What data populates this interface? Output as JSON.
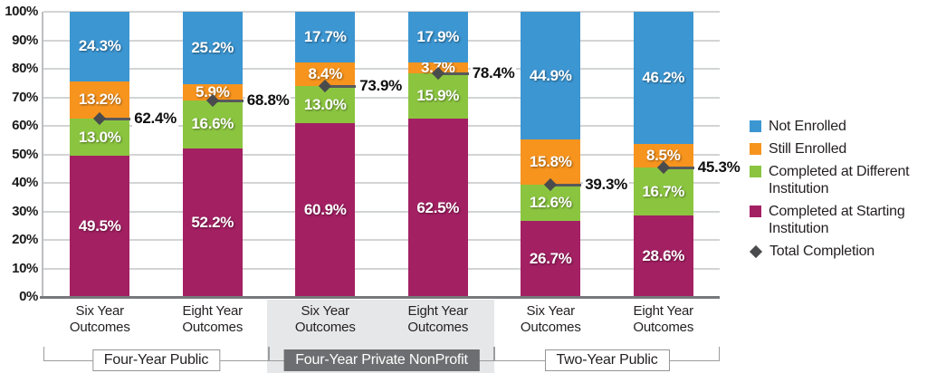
{
  "chart_data": {
    "type": "bar",
    "stacked": true,
    "value_suffix": "%",
    "ylim": [
      0,
      100
    ],
    "grid": true,
    "y_tick_labels": [
      "0%",
      "10%",
      "20%",
      "30%",
      "40%",
      "50%",
      "60%",
      "70%",
      "80%",
      "90%",
      "100%"
    ],
    "categories": [
      [
        "Six Year",
        "Outcomes"
      ],
      [
        "Eight Year",
        "Outcomes"
      ],
      [
        "Six Year",
        "Outcomes"
      ],
      [
        "Eight Year",
        "Outcomes"
      ],
      [
        "Six Year",
        "Outcomes"
      ],
      [
        "Eight Year",
        "Outcomes"
      ]
    ],
    "groups": [
      {
        "label": "Four-Year Public",
        "span": [
          0,
          1
        ],
        "emphasized": false
      },
      {
        "label": "Four-Year Private NonProfit",
        "span": [
          2,
          3
        ],
        "emphasized": true
      },
      {
        "label": "Two-Year Public",
        "span": [
          4,
          5
        ],
        "emphasized": false
      }
    ],
    "series": [
      {
        "name": "Completed at Starting Institution",
        "color": "#a32063",
        "values": [
          49.5,
          52.2,
          60.9,
          62.5,
          26.7,
          28.6
        ]
      },
      {
        "name": "Completed at Different Institution",
        "color": "#8bc540",
        "values": [
          13.0,
          16.6,
          13.0,
          15.9,
          12.6,
          16.7
        ]
      },
      {
        "name": "Still Enrolled",
        "color": "#f7941e",
        "values": [
          13.2,
          5.9,
          8.4,
          3.7,
          15.8,
          8.5
        ]
      },
      {
        "name": "Not Enrolled",
        "color": "#3c96d2",
        "values": [
          24.3,
          25.2,
          17.7,
          17.9,
          44.9,
          46.2
        ]
      }
    ],
    "totals": {
      "name": "Total Completion",
      "color": "#4a4b4d",
      "line_color": "#58595b",
      "values": [
        62.4,
        68.8,
        73.9,
        78.4,
        39.3,
        45.3
      ]
    },
    "legend": [
      {
        "label": "Not Enrolled",
        "marker": "swatch",
        "color": "#3c96d2"
      },
      {
        "label": "Still Enrolled",
        "marker": "swatch",
        "color": "#f7941e"
      },
      {
        "label": "Completed at Different Institution",
        "marker": "swatch",
        "color": "#8bc540"
      },
      {
        "label": "Completed at Starting Institution",
        "marker": "swatch",
        "color": "#a32063"
      },
      {
        "label": "Total Completion",
        "marker": "diamond",
        "color": "#4a4b4d"
      }
    ]
  }
}
